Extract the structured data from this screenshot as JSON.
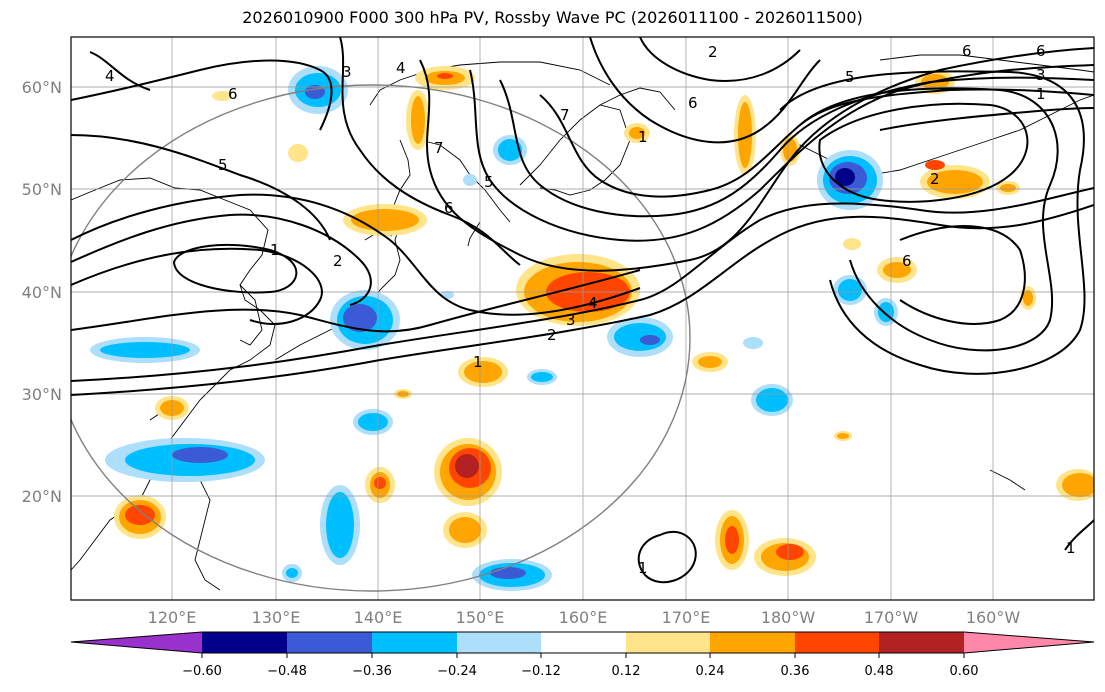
{
  "title": "2026010900 F000 300 hPa PV, Rossby Wave PC (2026011100 - 2026011500)",
  "lon_labels": [
    "120°E",
    "130°E",
    "140°E",
    "150°E",
    "160°E",
    "170°E",
    "180°W",
    "170°W",
    "160°W"
  ],
  "lat_labels": [
    "60°N",
    "50°N",
    "40°N",
    "30°N",
    "20°N"
  ],
  "colorbar": {
    "colors": [
      "#9932CC",
      "#00008B",
      "#3B5BD6",
      "#00BFFF",
      "#ADDEFA",
      "#FFFFFF",
      "#FFE48A",
      "#FFA500",
      "#FF4500",
      "#B22222",
      "#FF88AA"
    ],
    "labels": [
      "−0.60",
      "−0.48",
      "−0.36",
      "−0.24",
      "−0.12",
      "0.12",
      "0.24",
      "0.36",
      "0.48",
      "0.60"
    ]
  },
  "contour_labels": [
    "4",
    "6",
    "5",
    "1",
    "2",
    "3",
    "4",
    "6",
    "2",
    "6",
    "5",
    "3",
    "1",
    "7",
    "6",
    "7",
    "5",
    "6",
    "2",
    "6",
    "4",
    "3",
    "2",
    "1",
    "1",
    "1",
    "1"
  ]
}
